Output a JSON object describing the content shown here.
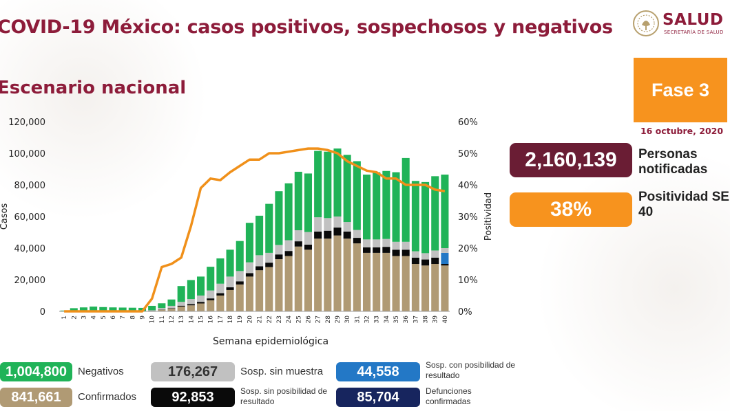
{
  "header": {
    "title": "COVID-19 México: casos positivos, sospechosos y negativos",
    "subtitle": "Escenario nacional"
  },
  "logo": {
    "name": "SALUD",
    "subtitle": "SECRETARÍA DE SALUD"
  },
  "phase": {
    "label": "Fase 3",
    "date": "16 octubre, 2020"
  },
  "kpis": {
    "notified_value": "2,160,139",
    "notified_label": "Personas notificadas",
    "positivity_value": "38%",
    "positivity_label": "Positividad SE 40"
  },
  "legend": {
    "negatives_value": "1,004,800",
    "negatives_label": "Negativos",
    "confirmed_value": "841,661",
    "confirmed_label": "Confirmados",
    "susp_no_sample_value": "176,267",
    "susp_no_sample_label": "Sosp. sin muestra",
    "susp_no_result_value": "92,853",
    "susp_no_result_label": "Sosp. sin posibilidad de resultado",
    "susp_possible_value": "44,558",
    "susp_possible_label": "Sosp. con posibilidad de resultado",
    "deaths_value": "85,704",
    "deaths_label": "Defunciones confirmadas"
  },
  "colors": {
    "brand": "#8d1c3a",
    "orange": "#f7931e",
    "negatives": "#20b358",
    "confirmed": "#b09a74",
    "susp_no_sample": "#c1c1c1",
    "susp_no_result": "#0a0a0a",
    "susp_possible": "#2378c6",
    "deaths": "#17255e",
    "positivity_line": "#f0901a"
  },
  "chart_data": {
    "type": "bar",
    "stacked": true,
    "xlabel": "Semana epidemiológica",
    "ylabel": "Casos",
    "y2label": "Positividad",
    "ylim": [
      0,
      120000
    ],
    "yticks": [
      0,
      20000,
      40000,
      60000,
      80000,
      100000,
      120000
    ],
    "ytick_labels": [
      "0",
      "20,000",
      "40,000",
      "60,000",
      "80,000",
      "100,000",
      "120,000"
    ],
    "y2lim": [
      0,
      60
    ],
    "y2ticks": [
      0,
      10,
      20,
      30,
      40,
      50,
      60
    ],
    "y2tick_labels": [
      "0%",
      "10%",
      "20%",
      "30%",
      "40%",
      "50%",
      "60%"
    ],
    "categories": [
      "1",
      "2",
      "3",
      "4",
      "5",
      "6",
      "7",
      "8",
      "9",
      "10",
      "11",
      "12",
      "13",
      "14",
      "15",
      "16",
      "17",
      "18",
      "19",
      "20",
      "21",
      "22",
      "23",
      "24",
      "25",
      "26",
      "27",
      "28",
      "29",
      "30",
      "31",
      "32",
      "33",
      "34",
      "35",
      "36",
      "37",
      "38",
      "39",
      "40"
    ],
    "series": [
      {
        "name": "Confirmados",
        "values": [
          0,
          0,
          0,
          0,
          0,
          0,
          0,
          0,
          0,
          300,
          1000,
          1700,
          3000,
          3800,
          5000,
          7000,
          10000,
          13500,
          17000,
          22000,
          26000,
          28000,
          33000,
          35000,
          41000,
          39000,
          46000,
          46000,
          48000,
          46000,
          43000,
          37000,
          37000,
          37000,
          35000,
          35000,
          30000,
          29000,
          30000,
          29000
        ]
      },
      {
        "name": "Sosp. sin posibilidad de resultado",
        "values": [
          0,
          0,
          0,
          0,
          0,
          0,
          0,
          0,
          0,
          100,
          200,
          300,
          600,
          800,
          1000,
          1200,
          1500,
          1700,
          2000,
          2200,
          2500,
          2800,
          3000,
          3200,
          3300,
          3200,
          4500,
          5000,
          5000,
          4500,
          3500,
          3500,
          3500,
          3800,
          4000,
          4000,
          4000,
          3800,
          4000,
          1000
        ]
      },
      {
        "name": "Sosp. con posibilidad de resultado",
        "values": [
          0,
          0,
          0,
          0,
          0,
          0,
          0,
          0,
          0,
          0,
          0,
          0,
          0,
          0,
          0,
          0,
          0,
          0,
          0,
          0,
          0,
          0,
          0,
          0,
          0,
          0,
          0,
          0,
          0,
          0,
          0,
          0,
          0,
          0,
          0,
          0,
          0,
          0,
          0,
          7000
        ]
      },
      {
        "name": "Sosp. sin muestra",
        "values": [
          0,
          0,
          0,
          0,
          0,
          0,
          0,
          0,
          0,
          300,
          900,
          1500,
          2400,
          3200,
          4000,
          5000,
          6000,
          6800,
          6500,
          6800,
          7000,
          6200,
          6000,
          6800,
          7000,
          8000,
          9000,
          8000,
          7000,
          6000,
          5000,
          5000,
          5000,
          5000,
          5000,
          5000,
          4000,
          4000,
          4500,
          3000
        ]
      },
      {
        "name": "Negativos",
        "values": [
          500,
          2000,
          2500,
          3000,
          2700,
          2500,
          2400,
          2300,
          2200,
          2800,
          3000,
          4000,
          10000,
          12000,
          12000,
          15000,
          16000,
          17000,
          19000,
          25000,
          25000,
          31000,
          34000,
          36000,
          37000,
          37000,
          42000,
          42000,
          43000,
          42500,
          43500,
          41000,
          42500,
          43000,
          44000,
          53000,
          44500,
          45000,
          47000,
          46500
        ]
      }
    ],
    "positivity": {
      "name": "Positividad",
      "axis": "y2",
      "values": [
        0,
        0,
        0,
        0,
        0,
        0,
        0,
        0,
        0,
        4,
        14,
        15,
        17,
        27,
        39,
        42,
        41.5,
        44,
        46,
        48,
        48,
        50,
        50,
        50.5,
        51,
        51.5,
        51.5,
        51,
        50,
        47.5,
        46,
        44.5,
        44,
        42,
        42,
        40,
        40,
        40,
        38.5,
        38
      ]
    },
    "legend": "bottom",
    "grid": false
  }
}
